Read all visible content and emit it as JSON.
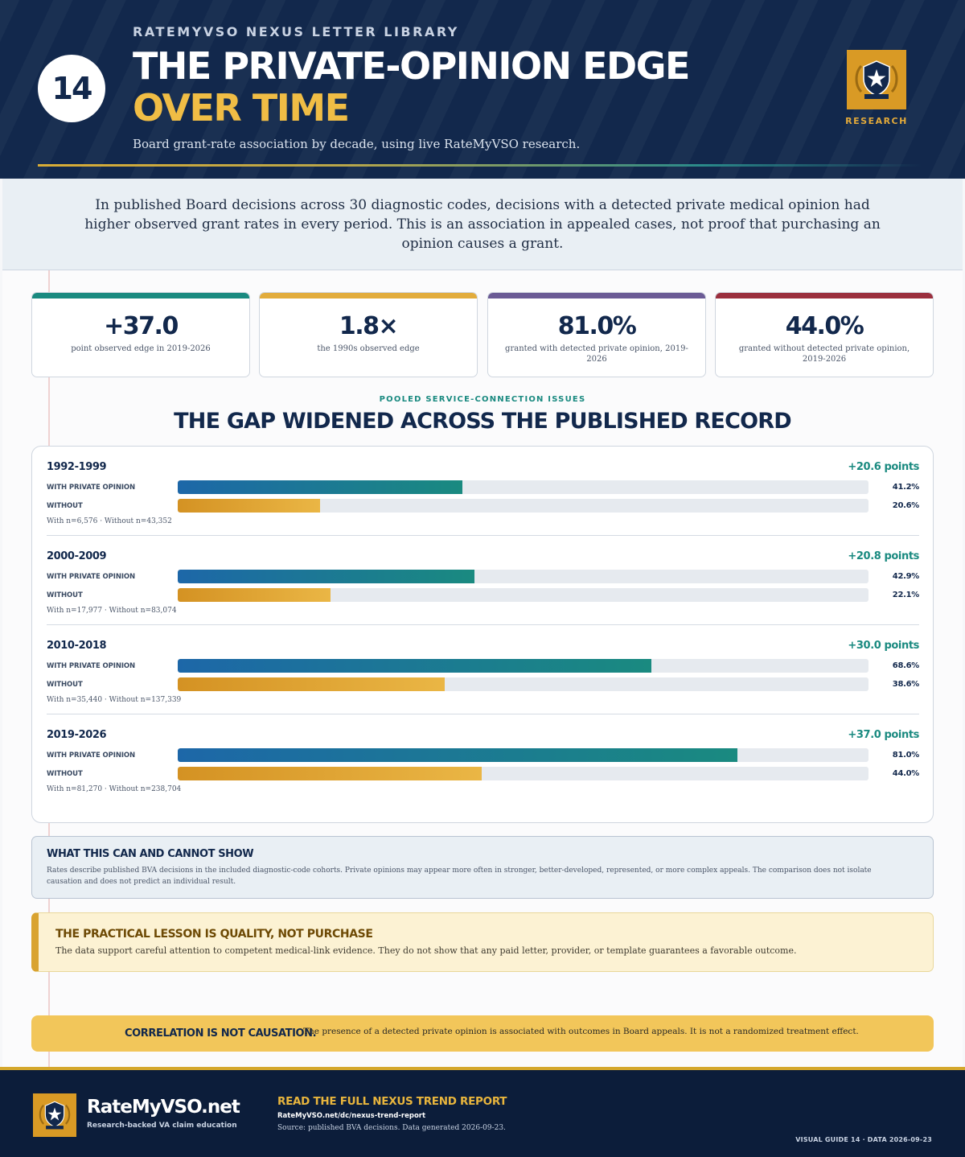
{
  "header": {
    "guide_number": "14",
    "eyebrow": "RATEMYVSO NEXUS LETTER LIBRARY",
    "title_line1": "THE PRIVATE-OPINION EDGE",
    "title_line2": "OVER TIME",
    "subtitle": "Board grant-rate association by decade, using live RateMyVSO research.",
    "badge_label": "RESEARCH"
  },
  "intro": "In published Board decisions across 30 diagnostic codes, decisions with a detected private medical opinion had higher observed grant rates in every period. This is an association in appealed cases, not proof that purchasing an opinion causes a grant.",
  "stats": [
    {
      "value": "+37.0",
      "label": "point observed edge in 2019-2026",
      "color": "#1a8a80"
    },
    {
      "value": "1.8×",
      "label": "the 1990s observed edge",
      "color": "#e2ac3c"
    },
    {
      "value": "81.0%",
      "label": "granted with detected private opinion, 2019-2026",
      "color": "#6b5b95"
    },
    {
      "value": "44.0%",
      "label": "granted without detected private opinion, 2019-2026",
      "color": "#9b2f3e"
    }
  ],
  "section": {
    "eyebrow": "POOLED SERVICE-CONNECTION ISSUES",
    "title": "THE GAP WIDENED ACROSS THE PUBLISHED RECORD"
  },
  "chart_data": {
    "type": "bar",
    "orientation": "horizontal",
    "row_labels": {
      "with": "WITH PRIVATE OPINION",
      "without": "WITHOUT"
    },
    "xlim": [
      0,
      100
    ],
    "categories": [
      "1992-1999",
      "2000-2009",
      "2010-2018",
      "2019-2026"
    ],
    "series": [
      {
        "name": "WITH PRIVATE OPINION",
        "values": [
          41.2,
          42.9,
          68.6,
          81.0
        ],
        "color": "#1a8a80"
      },
      {
        "name": "WITHOUT",
        "values": [
          20.6,
          22.1,
          38.6,
          44.0
        ],
        "color": "#e2ac3c"
      }
    ],
    "periods": [
      {
        "label": "1992-1999",
        "gap": "+20.6 points",
        "with_pct": 41.2,
        "without_pct": 20.6,
        "with_text": "41.2%",
        "without_text": "20.6%",
        "n_text": "With n=6,576 · Without n=43,352"
      },
      {
        "label": "2000-2009",
        "gap": "+20.8 points",
        "with_pct": 42.9,
        "without_pct": 22.1,
        "with_text": "42.9%",
        "without_text": "22.1%",
        "n_text": "With n=17,977 · Without n=83,074"
      },
      {
        "label": "2010-2018",
        "gap": "+30.0 points",
        "with_pct": 68.6,
        "without_pct": 38.6,
        "with_text": "68.6%",
        "without_text": "38.6%",
        "n_text": "With n=35,440 · Without n=137,339"
      },
      {
        "label": "2019-2026",
        "gap": "+37.0 points",
        "with_pct": 81.0,
        "without_pct": 44.0,
        "with_text": "81.0%",
        "without_text": "44.0%",
        "n_text": "With n=81,270 · Without n=238,704"
      }
    ]
  },
  "caveat": {
    "title": "WHAT THIS CAN AND CANNOT SHOW",
    "text": "Rates describe published BVA decisions in the included diagnostic-code cohorts. Private opinions may appear more often in stronger, better-developed, represented, or more complex appeals. The comparison does not isolate causation and does not predict an individual result."
  },
  "lesson": {
    "title": "THE PRACTICAL LESSON IS QUALITY, NOT PURCHASE",
    "text": "The data support careful attention to competent medical-link evidence. They do not show that any paid letter, provider, or template guarantees a favorable outcome."
  },
  "correlation": {
    "title": "CORRELATION IS NOT CAUSATION.",
    "text": "The presence of a detected private opinion is associated with outcomes in Board appeals. It is not a randomized treatment effect."
  },
  "footer": {
    "brand": "RateMyVSO.net",
    "tagline": "Research-backed VA claim education",
    "cta": "READ THE FULL NEXUS TREND REPORT",
    "url": "RateMyVSO.net/dc/nexus-trend-report",
    "source": "Source: published BVA decisions. Data generated 2026-09-23.",
    "guide_id": "VISUAL GUIDE 14 · DATA 2026-09-23"
  }
}
